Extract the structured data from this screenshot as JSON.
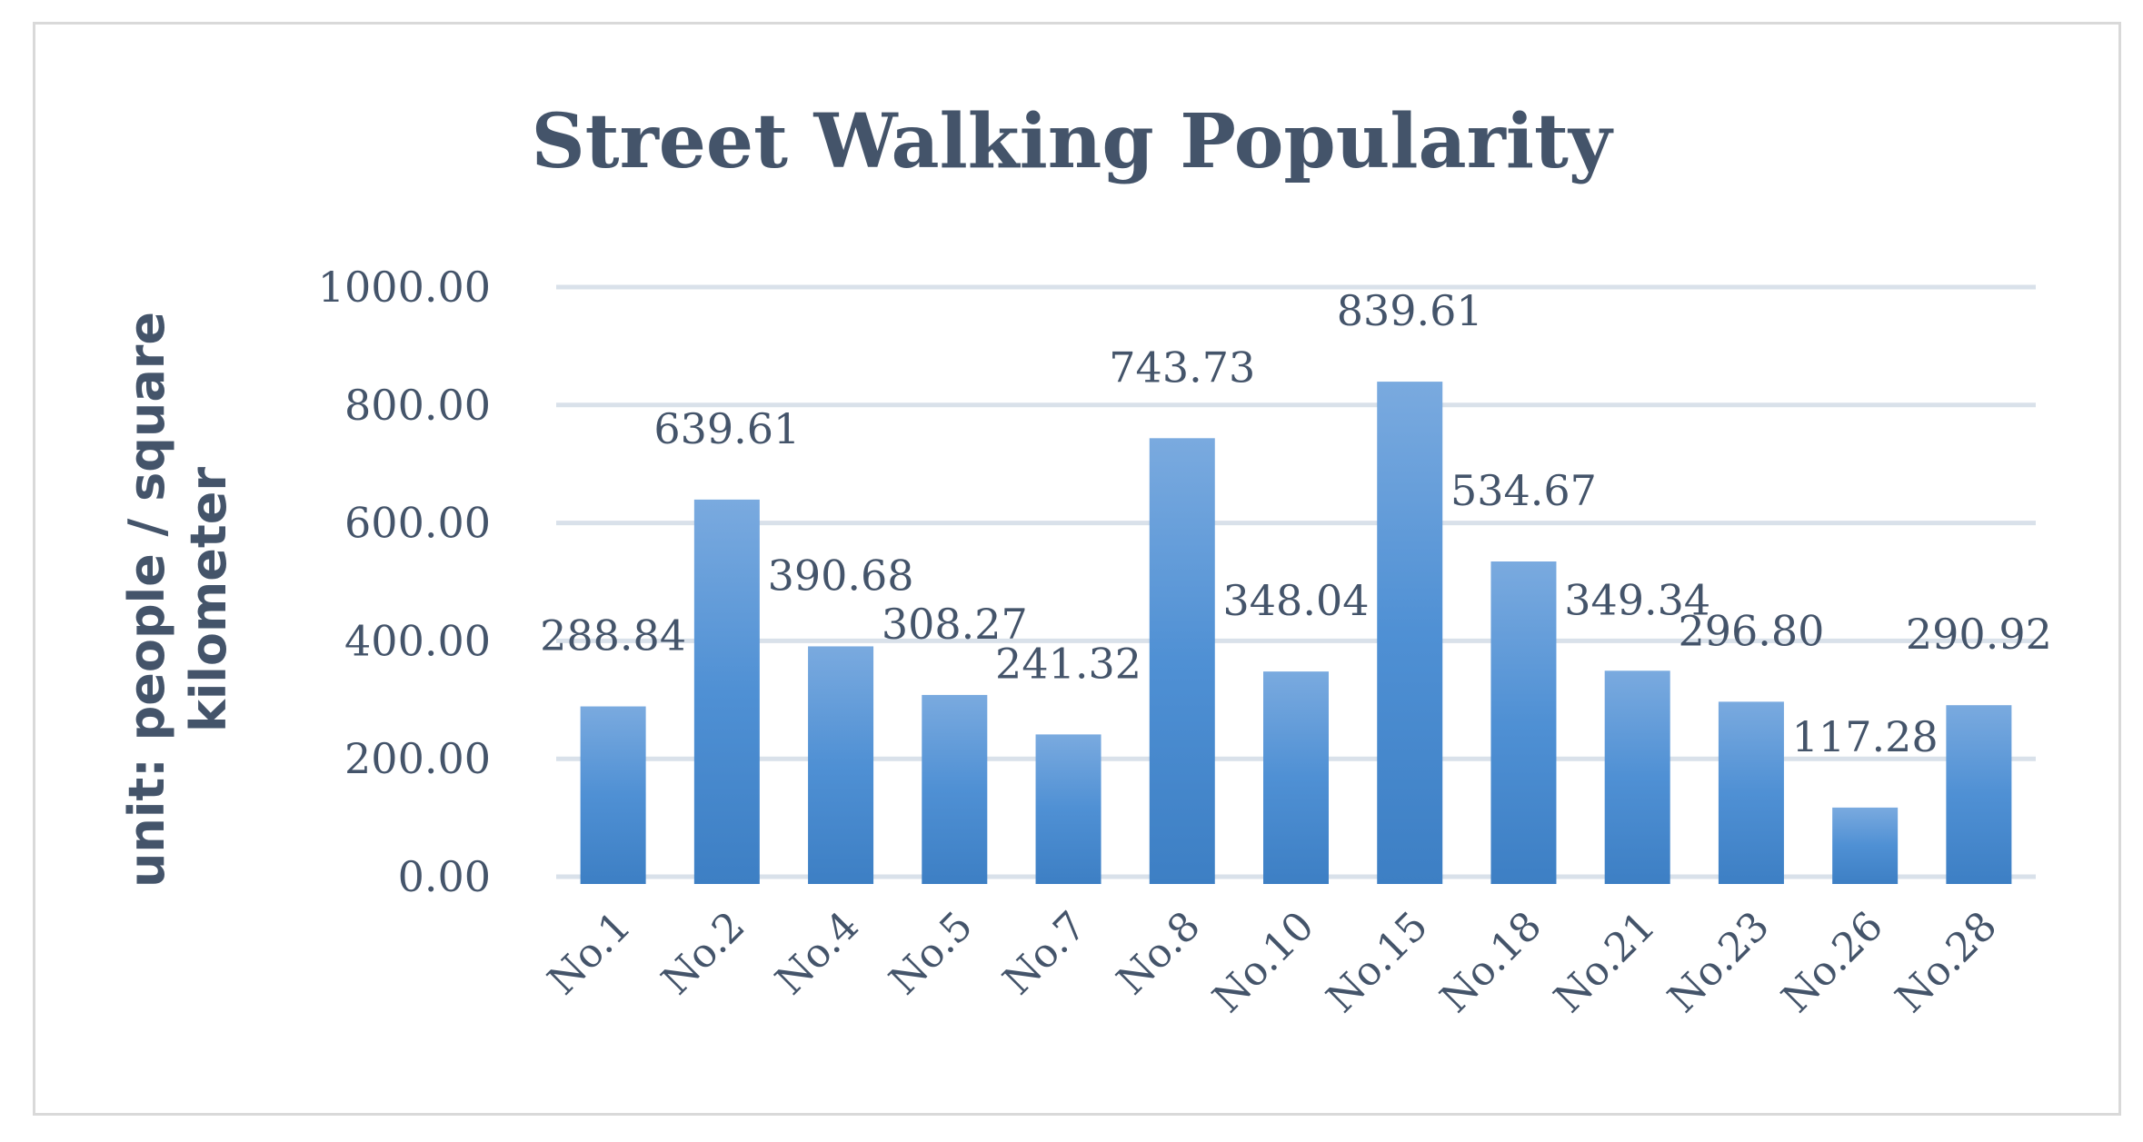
{
  "chart_data": {
    "type": "bar",
    "title": "Street Walking Popularity",
    "xlabel": "",
    "ylabel": "unit: people / square kilometer",
    "categories": [
      "No.1",
      "No.2",
      "No.4",
      "No.5",
      "No.7",
      "No.8",
      "No.10",
      "No.15",
      "No.18",
      "No.21",
      "No.23",
      "No.26",
      "No.28"
    ],
    "values": [
      288.84,
      639.61,
      390.68,
      308.27,
      241.32,
      743.73,
      348.04,
      839.61,
      534.67,
      349.34,
      296.8,
      117.28,
      290.92
    ],
    "value_labels": [
      "288.84",
      "639.61",
      "390.68",
      "308.27",
      "241.32",
      "743.73",
      "348.04",
      "839.61",
      "534.67",
      "349.34",
      "296.80",
      "117.28",
      "290.92"
    ],
    "ylim": [
      0,
      1000
    ],
    "yticks": [
      "0.00",
      "200.00",
      "400.00",
      "600.00",
      "800.00",
      "1000.00"
    ],
    "grid": true,
    "legend": "none",
    "colors": {
      "bar_top": "#7aaadf",
      "bar_mid": "#4f90d4",
      "bar_bottom": "#3d7fc4",
      "text": "#44546a",
      "grid": "#d9e1ea"
    }
  }
}
